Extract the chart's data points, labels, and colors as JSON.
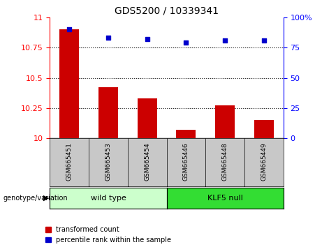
{
  "title": "GDS5200 / 10339341",
  "samples": [
    "GSM665451",
    "GSM665453",
    "GSM665454",
    "GSM665446",
    "GSM665448",
    "GSM665449"
  ],
  "red_values": [
    10.9,
    10.42,
    10.33,
    10.07,
    10.27,
    10.15
  ],
  "blue_values": [
    90,
    83,
    82,
    79,
    81,
    81
  ],
  "ylim_left": [
    10,
    11
  ],
  "ylim_right": [
    0,
    100
  ],
  "yticks_left": [
    10,
    10.25,
    10.5,
    10.75,
    11
  ],
  "yticks_right": [
    0,
    25,
    50,
    75,
    100
  ],
  "group_label": "genotype/variation",
  "legend_red": "transformed count",
  "legend_blue": "percentile rank within the sample",
  "bar_color": "#CC0000",
  "dot_color": "#0000CC",
  "bg_xtick": "#C8C8C8",
  "bg_group_wt": "#CCFFCC",
  "bg_group_klf": "#33DD33",
  "n_wt": 3,
  "n_klf": 3,
  "wt_label": "wild type",
  "klf_label": "KLF5 null"
}
